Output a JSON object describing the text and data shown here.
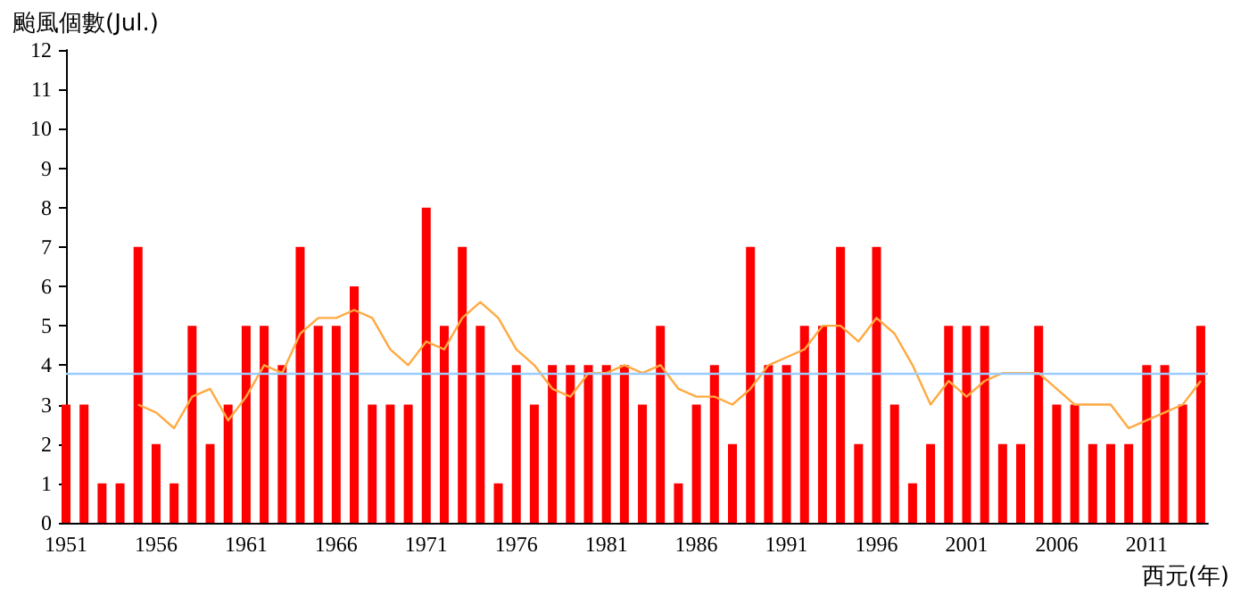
{
  "chart_data": {
    "type": "bar",
    "ylabel": "颱風個數(Jul.)",
    "xlabel": "西元(年)",
    "x": [
      1951,
      1952,
      1953,
      1954,
      1955,
      1956,
      1957,
      1958,
      1959,
      1960,
      1961,
      1962,
      1963,
      1964,
      1965,
      1966,
      1967,
      1968,
      1969,
      1970,
      1971,
      1972,
      1973,
      1974,
      1975,
      1976,
      1977,
      1978,
      1979,
      1980,
      1981,
      1982,
      1983,
      1984,
      1985,
      1986,
      1987,
      1988,
      1989,
      1990,
      1991,
      1992,
      1993,
      1994,
      1995,
      1996,
      1997,
      1998,
      1999,
      2000,
      2001,
      2002,
      2003,
      2004,
      2005,
      2006,
      2007,
      2008,
      2009,
      2010,
      2011,
      2012,
      2013,
      2014
    ],
    "series": [
      {
        "color": "#ff0000",
        "values": [
          3,
          3,
          1,
          1,
          7,
          2,
          1,
          5,
          2,
          3,
          5,
          5,
          4,
          7,
          5,
          5,
          6,
          3,
          3,
          3,
          8,
          5,
          7,
          5,
          1,
          4,
          3,
          4,
          4,
          4,
          4,
          4,
          3,
          5,
          1,
          3,
          4,
          2,
          7,
          4,
          4,
          5,
          5,
          7,
          2,
          7,
          3,
          1,
          2,
          5,
          5,
          5,
          2,
          2,
          5,
          3,
          3,
          2,
          2,
          2,
          4,
          4,
          3,
          5
        ]
      },
      {
        "type": "line",
        "color": "#ffa940",
        "x": [
          1955,
          1956,
          1957,
          1958,
          1959,
          1960,
          1961,
          1962,
          1963,
          1964,
          1965,
          1966,
          1967,
          1968,
          1969,
          1970,
          1971,
          1972,
          1973,
          1974,
          1975,
          1976,
          1977,
          1978,
          1979,
          1980,
          1981,
          1982,
          1983,
          1984,
          1985,
          1986,
          1987,
          1988,
          1989,
          1990,
          1991,
          1992,
          1993,
          1994,
          1995,
          1996,
          1997,
          1998,
          1999,
          2000,
          2001,
          2002,
          2003,
          2004,
          2005,
          2006,
          2007,
          2008,
          2009,
          2010,
          2011,
          2012,
          2013,
          2014
        ],
        "values": [
          3.0,
          2.8,
          2.4,
          3.2,
          3.4,
          2.6,
          3.2,
          4.0,
          3.8,
          4.8,
          5.2,
          5.2,
          5.4,
          5.2,
          4.4,
          4.0,
          4.6,
          4.4,
          5.2,
          5.6,
          5.2,
          4.4,
          4.0,
          3.4,
          3.2,
          3.8,
          3.8,
          4.0,
          3.8,
          4.0,
          3.4,
          3.2,
          3.2,
          3.0,
          3.4,
          4.0,
          4.2,
          4.4,
          5.0,
          5.0,
          4.6,
          5.2,
          4.8,
          4.0,
          3.0,
          3.6,
          3.2,
          3.6,
          3.8,
          3.8,
          3.8,
          3.4,
          3.0,
          3.0,
          3.0,
          2.4,
          2.6,
          2.8,
          3.0,
          3.6
        ]
      }
    ],
    "ref_lines": [
      {
        "axis": "y",
        "value": 3.8,
        "color": "#99ccff"
      }
    ],
    "xlim": [
      1951,
      2014.4
    ],
    "xticks": [
      1951,
      {
        "value": 1952,
        "label": null
      },
      {
        "value": 1953,
        "label": null
      },
      {
        "value": 1954,
        "label": null
      },
      {
        "value": 1955,
        "label": null
      },
      1956,
      {
        "value": 1957,
        "label": null
      },
      {
        "value": 1958,
        "label": null
      },
      {
        "value": 1959,
        "label": null
      },
      {
        "value": 1960,
        "label": null
      },
      1961,
      {
        "value": 1962,
        "label": null
      },
      {
        "value": 1963,
        "label": null
      },
      {
        "value": 1964,
        "label": null
      },
      {
        "value": 1965,
        "label": null
      },
      1966,
      {
        "value": 1967,
        "label": null
      },
      {
        "value": 1968,
        "label": null
      },
      {
        "value": 1969,
        "label": null
      },
      {
        "value": 1970,
        "label": null
      },
      1971,
      {
        "value": 1972,
        "label": null
      },
      {
        "value": 1973,
        "label": null
      },
      {
        "value": 1974,
        "label": null
      },
      {
        "value": 1975,
        "label": null
      },
      1976,
      {
        "value": 1977,
        "label": null
      },
      {
        "value": 1978,
        "label": null
      },
      {
        "value": 1979,
        "label": null
      },
      {
        "value": 1980,
        "label": null
      },
      1981,
      {
        "value": 1982,
        "label": null
      },
      {
        "value": 1983,
        "label": null
      },
      {
        "value": 1984,
        "label": null
      },
      {
        "value": 1985,
        "label": null
      },
      1986,
      {
        "value": 1987,
        "label": null
      },
      {
        "value": 1988,
        "label": null
      },
      {
        "value": 1989,
        "label": null
      },
      {
        "value": 1990,
        "label": null
      },
      1991,
      {
        "value": 1992,
        "label": null
      },
      {
        "value": 1993,
        "label": null
      },
      {
        "value": 1994,
        "label": null
      },
      {
        "value": 1995,
        "label": null
      },
      1996,
      {
        "value": 1997,
        "label": null
      },
      {
        "value": 1998,
        "label": null
      },
      {
        "value": 1999,
        "label": null
      },
      {
        "value": 2000,
        "label": null
      },
      2001,
      {
        "value": 2002,
        "label": null
      },
      {
        "value": 2003,
        "label": null
      },
      {
        "value": 2004,
        "label": null
      },
      {
        "value": 2005,
        "label": null
      },
      2006,
      {
        "value": 2007,
        "label": null
      },
      {
        "value": 2008,
        "label": null
      },
      {
        "value": 2009,
        "label": null
      },
      {
        "value": 2010,
        "label": null
      },
      2011,
      {
        "value": 2012,
        "label": null
      },
      {
        "value": 2013,
        "label": null
      },
      {
        "value": 2014,
        "label": null
      }
    ],
    "ylim": [
      0,
      12
    ],
    "yticks": [
      0,
      1,
      2,
      3,
      4,
      5,
      6,
      7,
      8,
      9,
      10,
      11,
      12
    ],
    "grid": false
  }
}
